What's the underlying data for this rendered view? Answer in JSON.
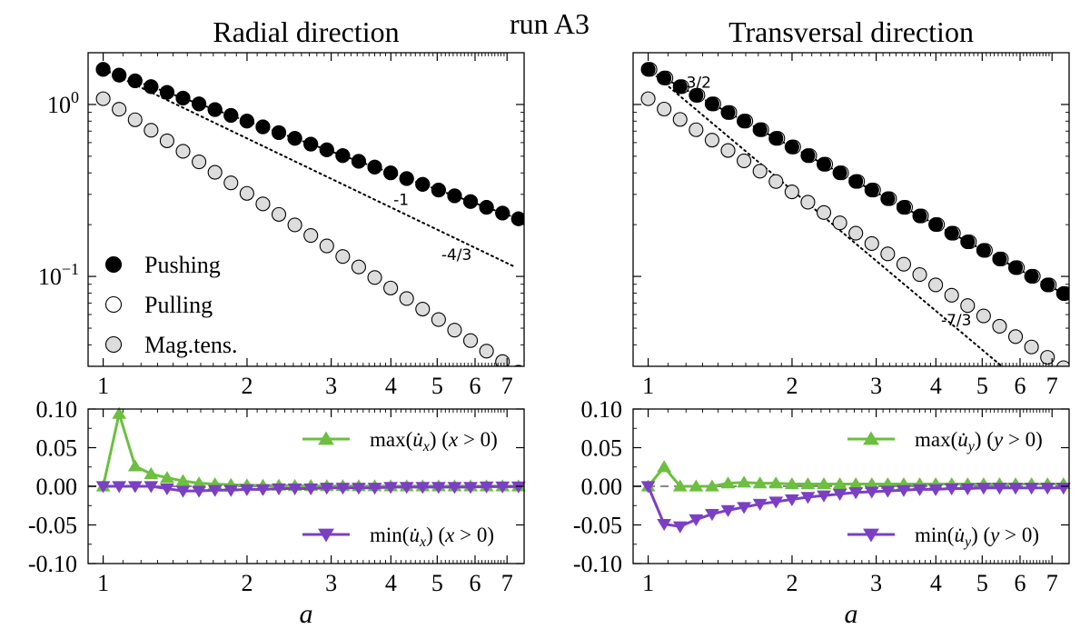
{
  "figure": {
    "suptitle": "run A3",
    "xlabel": "a"
  },
  "colors": {
    "pushing": "#000000",
    "pulling": "#ffffff",
    "magtens": "#dddddd",
    "max_line": "#6dbf3f",
    "min_line": "#7b3fc4",
    "zero_line": "#888888"
  },
  "chart_data": [
    {
      "id": "radial_top",
      "type": "scatter",
      "title": "Radial direction",
      "xscale": "log",
      "yscale": "log",
      "xlim": [
        0.93,
        7.6
      ],
      "ylim": [
        0.03,
        2.0
      ],
      "xticks": [
        1,
        2,
        3,
        4,
        5,
        6,
        7
      ],
      "yticks": [
        {
          "value": 1,
          "label": "10^0"
        },
        {
          "value": 0.1,
          "label": "10^-1"
        }
      ],
      "legend": {
        "position": "lower-left",
        "entries": [
          "Pushing",
          "Pulling",
          "Mag.tens."
        ]
      },
      "a_start": 1.0,
      "a_ratio": 1.08,
      "n_points": 27,
      "series": [
        {
          "name": "Pulling",
          "style": "pulling",
          "y0": 1.6,
          "slope": -1.0,
          "offset": [
            0,
            0
          ]
        },
        {
          "name": "Pushing",
          "style": "pushing",
          "y0": 1.6,
          "slope": -1.0,
          "offset": [
            0,
            0
          ]
        },
        {
          "name": "Mag.tens.",
          "style": "magtens",
          "y0": 1.08,
          "slope": -1.83,
          "offset": [
            0,
            0
          ]
        }
      ],
      "ref_lines": [
        {
          "label": "-1",
          "slope": -1.0,
          "y0": 1.6,
          "x_end": 7.3,
          "label_at": [
            4.05,
            0.26
          ]
        },
        {
          "label": "-4/3",
          "slope": -1.3333,
          "y0": 1.6,
          "x_end": 7.3,
          "label_at": [
            5.1,
            0.125
          ]
        }
      ]
    },
    {
      "id": "transversal_top",
      "type": "scatter",
      "title": "Transversal direction",
      "xscale": "log",
      "yscale": "log",
      "xlim": [
        0.93,
        7.6
      ],
      "ylim": [
        0.03,
        2.0
      ],
      "xticks": [
        1,
        2,
        3,
        4,
        5,
        6,
        7
      ],
      "a_start": 1.0,
      "a_ratio": 1.08,
      "n_points": 27,
      "series": [
        {
          "name": "Pulling",
          "style": "pulling",
          "y0": 1.6,
          "slope": -1.5,
          "offset": [
            2,
            0
          ]
        },
        {
          "name": "Pushing",
          "style": "pushing",
          "y0": 1.6,
          "slope": -1.5,
          "offset": [
            0,
            0
          ]
        },
        {
          "name": "Mag.tens.",
          "style": "magtens",
          "y0": 1.08,
          "slope": -1.8,
          "offset": [
            0,
            0
          ]
        }
      ],
      "ref_lines": [
        {
          "label": "-3/2",
          "slope": -1.5,
          "y0": 1.6,
          "x_end": 7.3,
          "label_at": [
            1.17,
            1.25
          ]
        },
        {
          "label": "-7/3",
          "slope": -2.3333,
          "y0": 1.6,
          "x_end": 7.3,
          "label_at": [
            4.1,
            0.052
          ]
        }
      ]
    },
    {
      "id": "radial_bottom",
      "type": "line",
      "xscale": "log",
      "xlim": [
        0.93,
        7.6
      ],
      "ylim": [
        -0.1,
        0.1
      ],
      "xticks": [
        1,
        2,
        3,
        4,
        5,
        6,
        7
      ],
      "yticks": [
        "0.10",
        "0.05",
        "0.00",
        "-0.05",
        "-0.10"
      ],
      "legend": {
        "position": "right"
      },
      "series": [
        {
          "name": "max(u̇x) (x>0)",
          "func": "max(",
          "sub": "x",
          "cond": "(x > 0)",
          "marker": "up",
          "values": [
            0.0,
            0.094,
            0.026,
            0.016,
            0.011,
            0.007,
            0.004,
            0.003,
            0.002,
            0.0015,
            0.001,
            0.001,
            0.0008,
            0.0006,
            0.0005,
            0.0004,
            0.0003,
            0.0003,
            0.0002,
            0.0002,
            0.0002,
            0.0001,
            0.0001,
            0.0001,
            0.0001,
            0.0001,
            0.0001
          ]
        },
        {
          "name": "min(u̇x) (x>0)",
          "func": "min(",
          "sub": "x",
          "cond": "(x > 0)",
          "marker": "down",
          "values": [
            0.0,
            0.0,
            0.0,
            0.0,
            -0.003,
            -0.006,
            -0.006,
            -0.005,
            -0.005,
            -0.004,
            -0.004,
            -0.003,
            -0.003,
            -0.003,
            -0.002,
            -0.002,
            -0.002,
            -0.002,
            -0.001,
            -0.001,
            -0.001,
            -0.001,
            -0.001,
            -0.001,
            -0.0005,
            -0.0005,
            -0.0005
          ]
        }
      ]
    },
    {
      "id": "transversal_bottom",
      "type": "line",
      "xscale": "log",
      "xlim": [
        0.93,
        7.6
      ],
      "ylim": [
        -0.1,
        0.1
      ],
      "xticks": [
        1,
        2,
        3,
        4,
        5,
        6,
        7
      ],
      "yticks": [
        "0.10",
        "0.05",
        "0.00",
        "-0.05",
        "-0.10"
      ],
      "legend": {
        "position": "right"
      },
      "series": [
        {
          "name": "max(u̇y) (y>0)",
          "func": "max(",
          "sub": "y",
          "cond": "(y > 0)",
          "marker": "up",
          "values": [
            0.0,
            0.025,
            0.0,
            0.0,
            0.0,
            0.004,
            0.005,
            0.004,
            0.004,
            0.003,
            0.003,
            0.003,
            0.003,
            0.003,
            0.003,
            0.003,
            0.003,
            0.003,
            0.003,
            0.003,
            0.003,
            0.003,
            0.003,
            0.003,
            0.003,
            0.003,
            0.003
          ]
        },
        {
          "name": "min(u̇y) (y>0)",
          "func": "min(",
          "sub": "y",
          "cond": "(y > 0)",
          "marker": "down",
          "values": [
            0.0,
            -0.049,
            -0.052,
            -0.043,
            -0.036,
            -0.031,
            -0.027,
            -0.023,
            -0.02,
            -0.017,
            -0.014,
            -0.012,
            -0.01,
            -0.008,
            -0.007,
            -0.006,
            -0.005,
            -0.004,
            -0.004,
            -0.003,
            -0.003,
            -0.002,
            -0.002,
            -0.002,
            -0.002,
            -0.002,
            -0.002
          ]
        }
      ]
    }
  ]
}
